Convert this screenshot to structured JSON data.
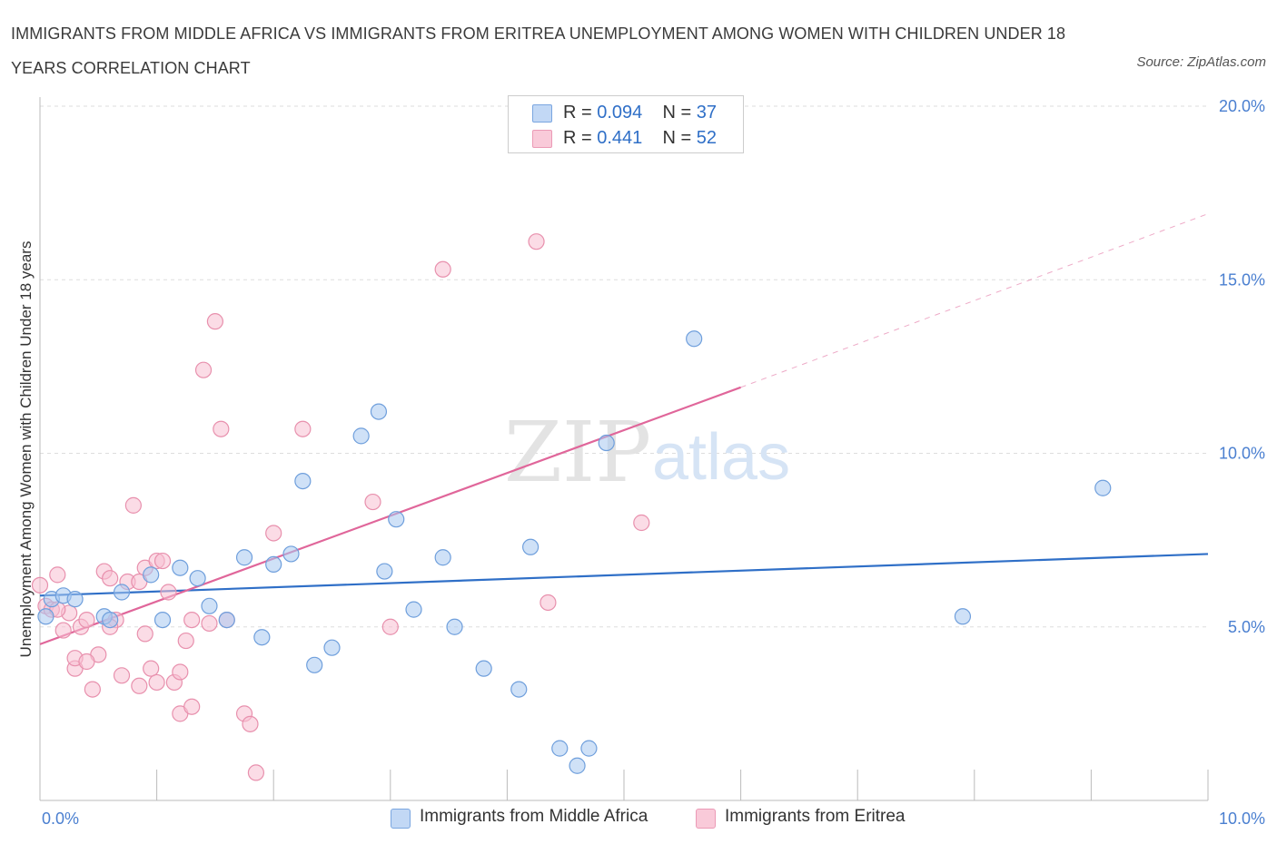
{
  "title": "IMMIGRANTS FROM MIDDLE AFRICA VS IMMIGRANTS FROM ERITREA UNEMPLOYMENT AMONG WOMEN WITH CHILDREN UNDER 18 YEARS CORRELATION CHART",
  "source": "Source: ZipAtlas.com",
  "watermark": {
    "zip": "ZIP",
    "atlas": "atlas"
  },
  "legend": {
    "r_label": "R =",
    "n_label": "N =",
    "rows": [
      {
        "r": "0.094",
        "n": "37"
      },
      {
        "r": "0.441",
        "n": "52"
      }
    ]
  },
  "chart_data": {
    "type": "scatter",
    "ylabel": "Unemployment Among Women with Children Under 18 years",
    "xlabel": "",
    "xlim": [
      0,
      10
    ],
    "ylim": [
      0,
      20
    ],
    "x_tick_labels": [
      "0.0%",
      "10.0%"
    ],
    "y_tick_values": [
      5,
      10,
      15,
      20
    ],
    "y_tick_labels": [
      "5.0%",
      "10.0%",
      "15.0%",
      "20.0%"
    ],
    "grid": true,
    "legend_position": "top-center",
    "series": [
      {
        "name": "Immigrants from Middle Africa",
        "color": "#a8c8f0",
        "stroke": "#6f9fdc",
        "trend_color": "#2f6fc7",
        "trend": {
          "x0": 0,
          "y0": 5.9,
          "x1": 10,
          "y1": 7.1,
          "dashed_from": null
        },
        "points": [
          [
            0.05,
            5.3
          ],
          [
            0.1,
            5.8
          ],
          [
            0.2,
            5.9
          ],
          [
            0.55,
            5.3
          ],
          [
            0.7,
            6.0
          ],
          [
            0.95,
            6.5
          ],
          [
            1.05,
            5.2
          ],
          [
            1.2,
            6.7
          ],
          [
            1.35,
            6.4
          ],
          [
            1.45,
            5.6
          ],
          [
            1.6,
            5.2
          ],
          [
            1.75,
            7.0
          ],
          [
            1.9,
            4.7
          ],
          [
            2.0,
            6.8
          ],
          [
            2.15,
            7.1
          ],
          [
            2.25,
            9.2
          ],
          [
            2.35,
            3.9
          ],
          [
            2.5,
            4.4
          ],
          [
            2.75,
            10.5
          ],
          [
            2.9,
            11.2
          ],
          [
            2.95,
            6.6
          ],
          [
            3.05,
            8.1
          ],
          [
            3.2,
            5.5
          ],
          [
            3.45,
            7.0
          ],
          [
            3.55,
            5.0
          ],
          [
            3.8,
            3.8
          ],
          [
            4.1,
            3.2
          ],
          [
            4.2,
            7.3
          ],
          [
            4.45,
            1.5
          ],
          [
            4.6,
            1.0
          ],
          [
            4.7,
            1.5
          ],
          [
            4.85,
            10.3
          ],
          [
            5.6,
            13.3
          ],
          [
            7.9,
            5.3
          ],
          [
            9.1,
            9.0
          ],
          [
            0.3,
            5.8
          ],
          [
            0.6,
            5.2
          ]
        ]
      },
      {
        "name": "Immigrants from Eritrea",
        "color": "#f7c0d2",
        "stroke": "#e890ad",
        "trend_color": "#e0669a",
        "trend": {
          "x0": 0,
          "y0": 4.5,
          "x1": 6.0,
          "y1": 11.9,
          "dashed_from": 6.0,
          "dashed_to_x": 10,
          "dashed_to_y": 16.9
        },
        "points": [
          [
            0.0,
            6.2
          ],
          [
            0.05,
            5.6
          ],
          [
            0.1,
            5.5
          ],
          [
            0.15,
            6.5
          ],
          [
            0.2,
            4.9
          ],
          [
            0.25,
            5.4
          ],
          [
            0.3,
            3.8
          ],
          [
            0.3,
            4.1
          ],
          [
            0.35,
            5.0
          ],
          [
            0.4,
            5.2
          ],
          [
            0.45,
            3.2
          ],
          [
            0.5,
            4.2
          ],
          [
            0.55,
            6.6
          ],
          [
            0.6,
            6.4
          ],
          [
            0.65,
            5.2
          ],
          [
            0.7,
            3.6
          ],
          [
            0.75,
            6.3
          ],
          [
            0.8,
            8.5
          ],
          [
            0.85,
            3.3
          ],
          [
            0.85,
            6.3
          ],
          [
            0.9,
            4.8
          ],
          [
            0.9,
            6.7
          ],
          [
            0.95,
            3.8
          ],
          [
            1.0,
            6.9
          ],
          [
            1.0,
            3.4
          ],
          [
            1.05,
            6.9
          ],
          [
            1.1,
            6.0
          ],
          [
            1.15,
            3.4
          ],
          [
            1.2,
            2.5
          ],
          [
            1.2,
            3.7
          ],
          [
            1.25,
            4.6
          ],
          [
            1.3,
            5.2
          ],
          [
            1.3,
            2.7
          ],
          [
            1.4,
            12.4
          ],
          [
            1.5,
            13.8
          ],
          [
            1.55,
            10.7
          ],
          [
            1.6,
            5.2
          ],
          [
            1.75,
            2.5
          ],
          [
            1.8,
            2.2
          ],
          [
            1.85,
            0.8
          ],
          [
            2.0,
            7.7
          ],
          [
            2.25,
            10.7
          ],
          [
            2.85,
            8.6
          ],
          [
            3.0,
            5.0
          ],
          [
            3.45,
            15.3
          ],
          [
            4.25,
            16.1
          ],
          [
            4.35,
            5.7
          ],
          [
            5.15,
            8.0
          ],
          [
            0.6,
            5.0
          ],
          [
            0.4,
            4.0
          ],
          [
            1.45,
            5.1
          ],
          [
            0.15,
            5.5
          ]
        ]
      }
    ]
  }
}
